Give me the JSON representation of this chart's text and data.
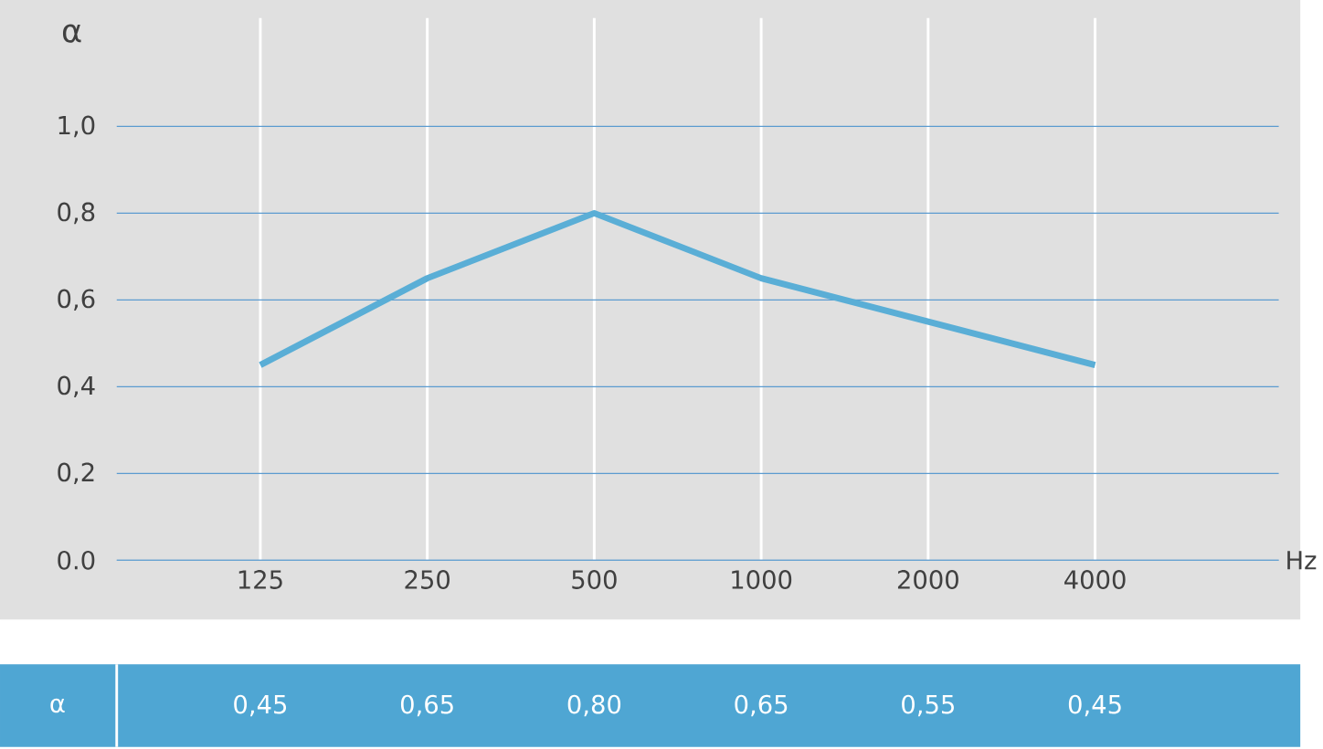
{
  "chart_data": {
    "type": "line",
    "xlabel": "Hz",
    "ylabel": "α",
    "categories": [
      "125",
      "250",
      "500",
      "1000",
      "2000",
      "4000"
    ],
    "values": [
      0.45,
      0.65,
      0.8,
      0.65,
      0.55,
      0.45
    ],
    "value_labels": [
      "0,45",
      "0,65",
      "0,80",
      "0,65",
      "0,55",
      "0,45"
    ],
    "color": "#5aaed6",
    "ylim": [
      0,
      1.25
    ],
    "yticks": [
      {
        "value": 0,
        "label": "0.0"
      },
      {
        "value": 0.2,
        "label": "0,2"
      },
      {
        "value": 0.4,
        "label": "0,4"
      },
      {
        "value": 0.6,
        "label": "0,6"
      },
      {
        "value": 0.8,
        "label": "0,8"
      },
      {
        "value": 1.0,
        "label": "1,0"
      }
    ],
    "grid": true,
    "annotations": [
      "α"
    ]
  }
}
